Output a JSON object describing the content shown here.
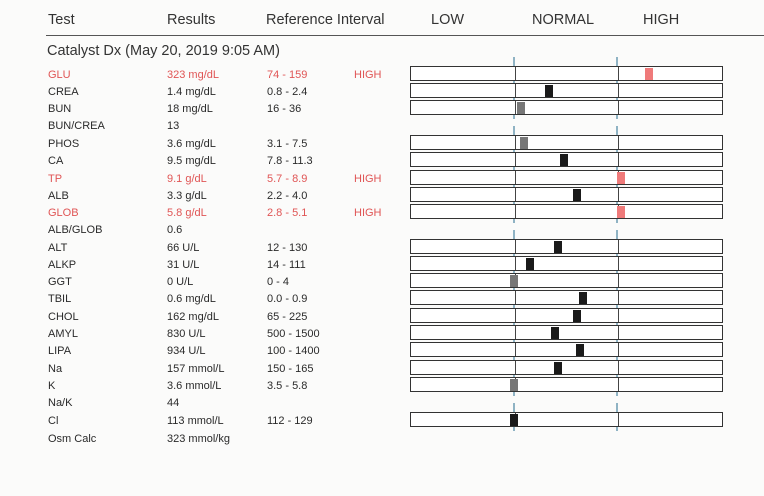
{
  "header": {
    "test": "Test",
    "results": "Results",
    "reference": "Reference Interval",
    "low": "LOW",
    "normal": "NORMAL",
    "high": "HIGH"
  },
  "subtitle": "Catalyst Dx (May 20, 2019 9:05 AM)",
  "colors": {
    "high_text": "#e05555",
    "marker_red": "#ef7a7a",
    "marker_black": "#1a1a1a",
    "marker_gray": "#777777",
    "group_line": "#8fb3c4"
  },
  "rows": [
    {
      "test": "GLU",
      "result": "323 mg/dL",
      "ref": "74 - 159",
      "flag": "HIGH",
      "high": true,
      "pos": 0.76,
      "marker": "red"
    },
    {
      "test": "CREA",
      "result": "1.4 mg/dL",
      "ref": "0.8 - 2.4",
      "flag": "",
      "high": false,
      "pos": 0.44,
      "marker": "black"
    },
    {
      "test": "BUN",
      "result": "18 mg/dL",
      "ref": "16 - 36",
      "flag": "",
      "high": false,
      "pos": 0.35,
      "marker": "gray"
    },
    {
      "test": "BUN/CREA",
      "result": "13",
      "ref": "",
      "flag": "",
      "high": false,
      "pos": null,
      "marker": ""
    },
    {
      "test": "PHOS",
      "result": "3.6 mg/dL",
      "ref": "3.1 - 7.5",
      "flag": "",
      "high": false,
      "pos": 0.36,
      "marker": "gray"
    },
    {
      "test": "CA",
      "result": "9.5 mg/dL",
      "ref": "7.8 - 11.3",
      "flag": "",
      "high": false,
      "pos": 0.49,
      "marker": "black"
    },
    {
      "test": "TP",
      "result": "9.1 g/dL",
      "ref": "5.7 - 8.9",
      "flag": "HIGH",
      "high": true,
      "pos": 0.67,
      "marker": "red"
    },
    {
      "test": "ALB",
      "result": "3.3 g/dL",
      "ref": "2.2 - 4.0",
      "flag": "",
      "high": false,
      "pos": 0.53,
      "marker": "black"
    },
    {
      "test": "GLOB",
      "result": "5.8 g/dL",
      "ref": "2.8 - 5.1",
      "flag": "HIGH",
      "high": true,
      "pos": 0.67,
      "marker": "red"
    },
    {
      "test": "ALB/GLOB",
      "result": "0.6",
      "ref": "",
      "flag": "",
      "high": false,
      "pos": null,
      "marker": ""
    },
    {
      "test": "ALT",
      "result": "66 U/L",
      "ref": "12 - 130",
      "flag": "",
      "high": false,
      "pos": 0.47,
      "marker": "black"
    },
    {
      "test": "ALKP",
      "result": "31 U/L",
      "ref": "14 - 111",
      "flag": "",
      "high": false,
      "pos": 0.38,
      "marker": "black"
    },
    {
      "test": "GGT",
      "result": "0 U/L",
      "ref": "0 - 4",
      "flag": "",
      "high": false,
      "pos": 0.33,
      "marker": "gray"
    },
    {
      "test": "TBIL",
      "result": "0.6 mg/dL",
      "ref": "0.0 - 0.9",
      "flag": "",
      "high": false,
      "pos": 0.55,
      "marker": "black"
    },
    {
      "test": "CHOL",
      "result": "162 mg/dL",
      "ref": "65 - 225",
      "flag": "",
      "high": false,
      "pos": 0.53,
      "marker": "black"
    },
    {
      "test": "AMYL",
      "result": "830 U/L",
      "ref": "500 - 1500",
      "flag": "",
      "high": false,
      "pos": 0.46,
      "marker": "black"
    },
    {
      "test": "LIPA",
      "result": "934 U/L",
      "ref": "100 - 1400",
      "flag": "",
      "high": false,
      "pos": 0.54,
      "marker": "black"
    },
    {
      "test": "Na",
      "result": "157 mmol/L",
      "ref": "150 - 165",
      "flag": "",
      "high": false,
      "pos": 0.47,
      "marker": "black"
    },
    {
      "test": "K",
      "result": "3.6 mmol/L",
      "ref": "3.5 - 5.8",
      "flag": "",
      "high": false,
      "pos": 0.33,
      "marker": "gray"
    },
    {
      "test": "Na/K",
      "result": "44",
      "ref": "",
      "flag": "",
      "high": false,
      "pos": null,
      "marker": ""
    },
    {
      "test": "Cl",
      "result": "113 mmol/L",
      "ref": "112 - 129",
      "flag": "",
      "high": false,
      "pos": 0.33,
      "marker": "black"
    },
    {
      "test": "Osm Calc",
      "result": "323 mmol/kg",
      "ref": "",
      "flag": "",
      "high": false,
      "pos": null,
      "marker": ""
    }
  ]
}
